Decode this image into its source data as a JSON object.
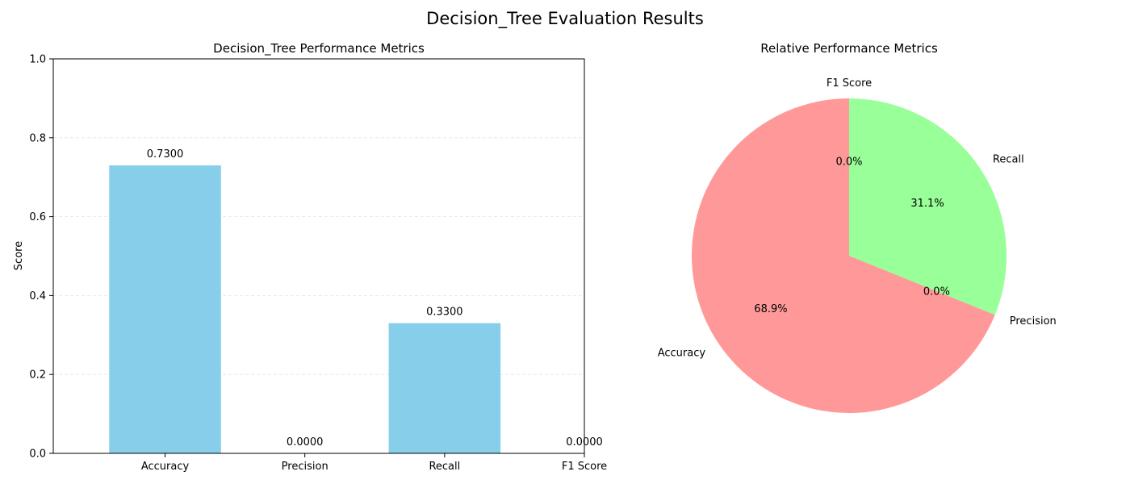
{
  "figure": {
    "suptitle": "Decision_Tree Evaluation Results"
  },
  "chart_data": [
    {
      "type": "bar",
      "title": "Decision_Tree Performance Metrics",
      "xlabel": "",
      "ylabel": "Score",
      "categories": [
        "Accuracy",
        "Precision",
        "Recall",
        "F1 Score"
      ],
      "values": [
        0.73,
        0.0,
        0.33,
        0.0
      ],
      "value_labels": [
        "0.7300",
        "0.0000",
        "0.3300",
        "0.0000"
      ],
      "ylim": [
        0,
        1
      ],
      "yticks": [
        0.0,
        0.2,
        0.4,
        0.6,
        0.8,
        1.0
      ],
      "ytick_labels": [
        "0.0",
        "0.2",
        "0.4",
        "0.6",
        "0.8",
        "1.0"
      ],
      "grid": "y-dashed",
      "color": "#87ceeb"
    },
    {
      "type": "pie",
      "title": "Relative Performance Metrics",
      "labels": [
        "Accuracy",
        "Precision",
        "Recall",
        "F1 Score"
      ],
      "values": [
        0.73,
        0.0,
        0.33,
        0.0
      ],
      "percent_labels": [
        "68.9%",
        "0.0%",
        "31.1%",
        "0.0%"
      ],
      "colors": [
        "#ff9999",
        "#66b3ff",
        "#99ff99",
        "#ffcc99"
      ],
      "start_angle_deg": 90
    }
  ]
}
